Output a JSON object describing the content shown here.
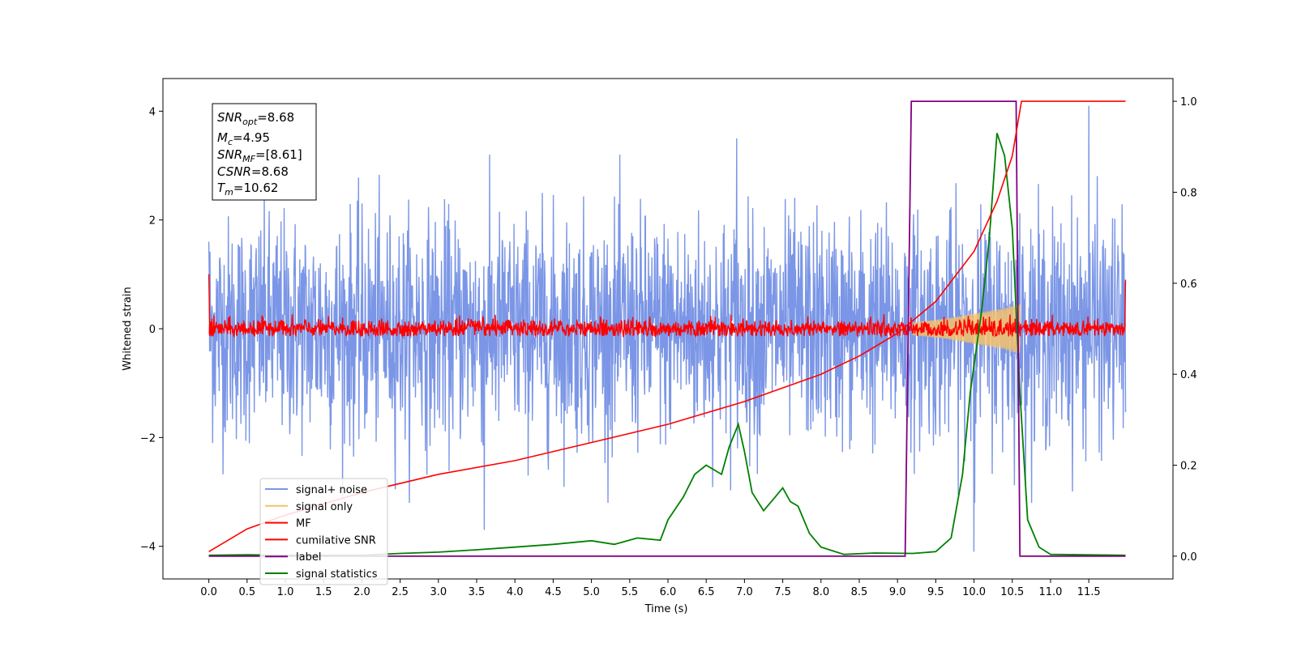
{
  "chart_data": {
    "type": "line",
    "xlabel": "Time (s)",
    "ylabel_left": "Whitened strain",
    "ylabel_right": "",
    "xlim": [
      -0.6,
      12.6
    ],
    "ylim_left": [
      -4.6,
      4.6
    ],
    "ylim_right": [
      -0.05,
      1.05
    ],
    "x_ticks": [
      "0.0",
      "0.5",
      "1.0",
      "1.5",
      "2.0",
      "2.5",
      "3.0",
      "3.5",
      "4.0",
      "4.5",
      "5.0",
      "5.5",
      "6.0",
      "6.5",
      "7.0",
      "7.5",
      "8.0",
      "8.5",
      "9.0",
      "9.5",
      "10.0",
      "10.5",
      "11.0",
      "11.5"
    ],
    "y_ticks_left": [
      "4",
      "2",
      "0",
      "−2",
      "−4"
    ],
    "y_ticks_right": [
      "1.0",
      "0.8",
      "0.6",
      "0.4",
      "0.2",
      "0.0"
    ],
    "colors": {
      "signal_noise": "#7b96e6",
      "signal_only": "#f5c26b",
      "mf": "#ff0000",
      "cumulative_snr": "#ff0000",
      "label": "#800080",
      "signal_statistics": "#008000"
    },
    "legend": [
      "signal+ noise",
      "signal only",
      "MF",
      "cumilative SNR",
      "label",
      "signal statistics"
    ],
    "annotation": {
      "snr_opt": {
        "main": "SNR",
        "sub": "opt",
        "value": "=8.68"
      },
      "mc": {
        "main": "M",
        "sub": "c",
        "value": "=4.95"
      },
      "snr_mf": {
        "main": "SNR",
        "sub": "MF",
        "value": "=[8.61]"
      },
      "csnr": {
        "main": "CSNR",
        "value": "=8.68"
      },
      "tm": {
        "main": "T",
        "sub": "m",
        "value": "=10.62"
      }
    },
    "signal_noise": {
      "description_axis": "left",
      "x_range": [
        0.0,
        11.98
      ],
      "typical_amplitude": 1.2,
      "max_peaks": [
        [
          11.5,
          4.1
        ],
        [
          6.9,
          3.5
        ],
        [
          3.6,
          -3.7
        ],
        [
          10.0,
          -4.1
        ]
      ]
    },
    "signal_only": {
      "axis": "left",
      "x_range": [
        9.2,
        10.6
      ],
      "envelope": [
        [
          9.2,
          0.12
        ],
        [
          9.6,
          0.18
        ],
        [
          10.0,
          0.28
        ],
        [
          10.4,
          0.38
        ],
        [
          10.55,
          0.45
        ]
      ]
    },
    "matched_filter": {
      "axis": "left",
      "x_range": [
        0.0,
        11.98
      ],
      "start_value": 1.0,
      "end_value": 0.9,
      "typical_amplitude": 0.15
    },
    "cumulative_snr": {
      "axis": "right",
      "points": [
        [
          0.0,
          0.01
        ],
        [
          0.5,
          0.06
        ],
        [
          1.0,
          0.09
        ],
        [
          2.0,
          0.14
        ],
        [
          3.0,
          0.18
        ],
        [
          4.0,
          0.21
        ],
        [
          5.0,
          0.25
        ],
        [
          6.0,
          0.29
        ],
        [
          7.0,
          0.34
        ],
        [
          8.0,
          0.4
        ],
        [
          8.5,
          0.44
        ],
        [
          9.0,
          0.49
        ],
        [
          9.5,
          0.56
        ],
        [
          10.0,
          0.67
        ],
        [
          10.3,
          0.78
        ],
        [
          10.5,
          0.88
        ],
        [
          10.62,
          1.0
        ],
        [
          11.98,
          1.0
        ]
      ]
    },
    "label_series": {
      "axis": "right",
      "points": [
        [
          0.0,
          0.0
        ],
        [
          9.1,
          0.0
        ],
        [
          9.18,
          1.0
        ],
        [
          10.55,
          1.0
        ],
        [
          10.6,
          0.0
        ],
        [
          11.98,
          0.0
        ]
      ]
    },
    "signal_statistics": {
      "axis": "right",
      "points": [
        [
          0.0,
          0.002
        ],
        [
          0.5,
          0.003
        ],
        [
          1.0,
          0.002
        ],
        [
          1.5,
          0.002
        ],
        [
          2.0,
          0.002
        ],
        [
          2.5,
          0.006
        ],
        [
          3.0,
          0.009
        ],
        [
          3.5,
          0.014
        ],
        [
          4.0,
          0.02
        ],
        [
          4.5,
          0.026
        ],
        [
          5.0,
          0.034
        ],
        [
          5.3,
          0.026
        ],
        [
          5.6,
          0.04
        ],
        [
          5.9,
          0.035
        ],
        [
          6.0,
          0.08
        ],
        [
          6.2,
          0.13
        ],
        [
          6.35,
          0.18
        ],
        [
          6.5,
          0.2
        ],
        [
          6.7,
          0.18
        ],
        [
          6.8,
          0.24
        ],
        [
          6.92,
          0.29
        ],
        [
          7.0,
          0.23
        ],
        [
          7.1,
          0.14
        ],
        [
          7.25,
          0.1
        ],
        [
          7.4,
          0.13
        ],
        [
          7.5,
          0.15
        ],
        [
          7.6,
          0.12
        ],
        [
          7.7,
          0.11
        ],
        [
          7.85,
          0.05
        ],
        [
          8.0,
          0.02
        ],
        [
          8.3,
          0.004
        ],
        [
          8.7,
          0.007
        ],
        [
          9.2,
          0.006
        ],
        [
          9.5,
          0.01
        ],
        [
          9.7,
          0.04
        ],
        [
          9.85,
          0.18
        ],
        [
          9.95,
          0.36
        ],
        [
          10.1,
          0.54
        ],
        [
          10.2,
          0.7
        ],
        [
          10.3,
          0.93
        ],
        [
          10.4,
          0.88
        ],
        [
          10.5,
          0.72
        ],
        [
          10.6,
          0.36
        ],
        [
          10.7,
          0.08
        ],
        [
          10.85,
          0.02
        ],
        [
          11.0,
          0.004
        ],
        [
          11.98,
          0.002
        ]
      ]
    }
  }
}
